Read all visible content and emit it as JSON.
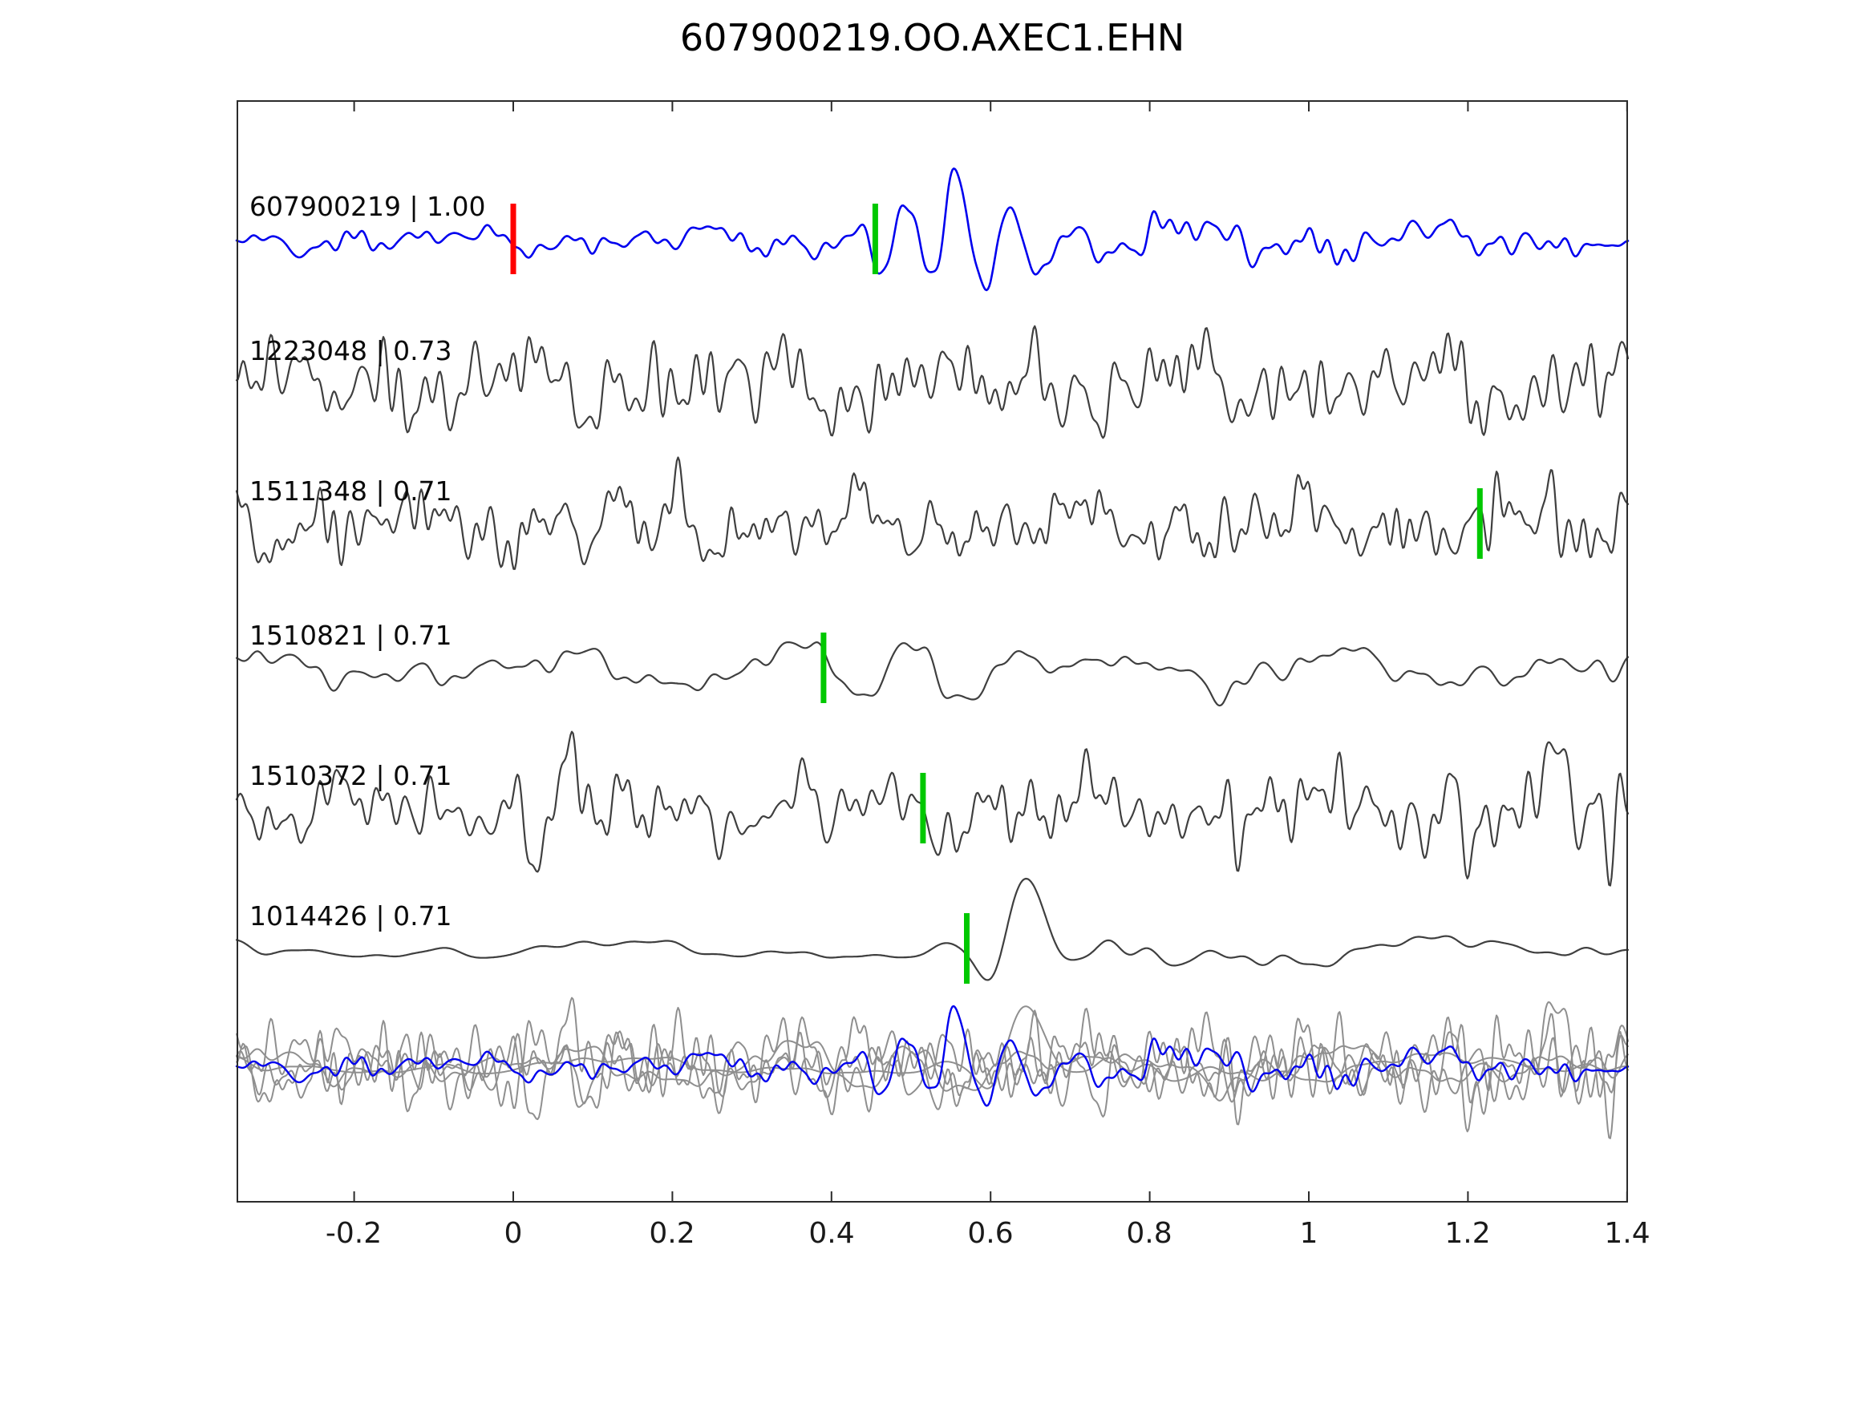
{
  "chart_data": {
    "type": "line",
    "title": "607900219.OO.AXEC1.EHN",
    "xlim": [
      -0.3478,
      1.4012
    ],
    "x_ticks": [
      -0.2,
      0,
      0.2,
      0.4,
      0.6,
      0.8,
      1,
      1.2,
      1.4
    ],
    "x_tick_labels": [
      "-0.2",
      "0",
      "0.2",
      "0.4",
      "0.6",
      "0.8",
      "1",
      "1.2",
      "1.4"
    ],
    "ylabel": "",
    "xlabel": "",
    "grid": false,
    "legend": "none",
    "colors": {
      "template_trace": "#0000ee",
      "match_trace": "#3f3f3f",
      "overlay_gray": "#8f8f8f",
      "pick_marker": "#00c800",
      "reference_marker": "#ff0000",
      "axis": "#2b2b2b",
      "background": "#ffffff"
    },
    "traces": [
      {
        "id": "607900219",
        "similarity": "1.00",
        "label": "607900219 | 1.00",
        "color": "#0000ee",
        "baseline": 175,
        "seed": 11,
        "noise_amp": 8,
        "base_freq": 3.2,
        "roughness": 0.55,
        "n_components": 16,
        "amp_mod": {
          "center": 0.85,
          "width": 0.3,
          "gain": 1.1
        },
        "bursts": [
          {
            "center": 0.555,
            "width": 0.068,
            "amp": 78,
            "freq": 15,
            "phase": 1.2
          }
        ],
        "markers": [
          {
            "x": 0.0,
            "kind": "reference",
            "color": "#ff0000"
          },
          {
            "x": 0.455,
            "kind": "pick",
            "color": "#00c800"
          }
        ]
      },
      {
        "id": "1223048",
        "similarity": "0.73",
        "label": "1223048 | 0.73",
        "color": "#3f3f3f",
        "baseline": 355,
        "seed": 22,
        "noise_amp": 28,
        "base_freq": 3.4,
        "roughness": 0.35,
        "n_components": 18,
        "bursts": [],
        "markers": []
      },
      {
        "id": "1511348",
        "similarity": "0.71",
        "label": "1511348 | 0.71",
        "color": "#3f3f3f",
        "baseline": 530,
        "seed": 33,
        "noise_amp": 22,
        "base_freq": 3.5,
        "roughness": 0.4,
        "n_components": 18,
        "bursts": [
          {
            "center": 0.19,
            "width": 0.035,
            "amp": 55,
            "freq": 13,
            "phase": 0.4
          }
        ],
        "markers": [
          {
            "x": 1.215,
            "kind": "pick",
            "color": "#00c800"
          }
        ]
      },
      {
        "id": "1510821",
        "similarity": "0.71",
        "label": "1510821 | 0.71",
        "color": "#3f3f3f",
        "baseline": 710,
        "seed": 44,
        "noise_amp": 14,
        "base_freq": 2.6,
        "roughness": 0.8,
        "n_components": 12,
        "bursts": [
          {
            "center": 0.52,
            "width": 0.085,
            "amp": 55,
            "freq": 7.5,
            "phase": 2.4
          }
        ],
        "markers": [
          {
            "x": 0.39,
            "kind": "pick",
            "color": "#00c800"
          }
        ]
      },
      {
        "id": "1510372",
        "similarity": "0.71",
        "label": "1510372 | 0.71",
        "color": "#3f3f3f",
        "baseline": 885,
        "seed": 55,
        "noise_amp": 24,
        "base_freq": 3.4,
        "roughness": 0.35,
        "n_components": 18,
        "amp_mod": {
          "center": 1.35,
          "width": 0.18,
          "gain": 0.7
        },
        "bursts": [
          {
            "center": 0.05,
            "width": 0.045,
            "amp": 55,
            "freq": 12,
            "phase": 0.0
          }
        ],
        "markers": [
          {
            "x": 0.515,
            "kind": "pick",
            "color": "#00c800"
          }
        ]
      },
      {
        "id": "1014426",
        "similarity": "0.71",
        "label": "1014426 | 0.71",
        "color": "#3f3f3f",
        "baseline": 1060,
        "seed": 66,
        "noise_amp": 6.5,
        "base_freq": 2.2,
        "roughness": 1.0,
        "n_components": 10,
        "amp_mod": {
          "center": 0.8,
          "width": 0.22,
          "gain": 1.6
        },
        "bursts": [
          {
            "center": 0.635,
            "width": 0.055,
            "amp": 68,
            "freq": 9,
            "phase": 0.8
          }
        ],
        "markers": [
          {
            "x": 0.57,
            "kind": "pick",
            "color": "#00c800"
          }
        ]
      }
    ],
    "overlay": {
      "baseline": 1205,
      "amp_scale": 0.95,
      "burst_scale": 0.8,
      "gray_color": "#8f8f8f",
      "blue_color": "#0000ee"
    }
  }
}
